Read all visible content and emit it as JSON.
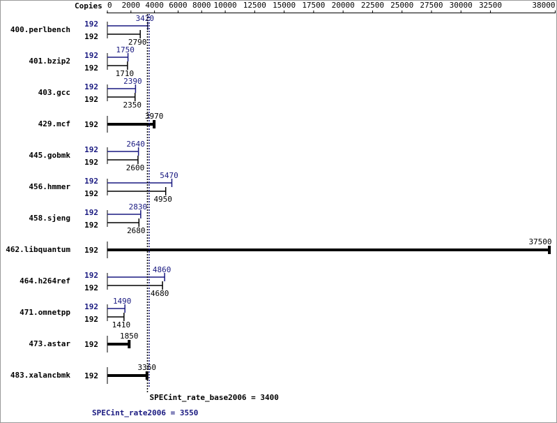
{
  "chart_data": {
    "type": "bar",
    "x_axis_title": "Copies",
    "categories": [
      "400.perlbench",
      "401.bzip2",
      "403.gcc",
      "429.mcf",
      "445.gobmk",
      "456.hmmer",
      "458.sjeng",
      "462.libquantum",
      "464.h264ref",
      "471.omnetpp",
      "473.astar",
      "483.xalancbmk"
    ],
    "series": [
      {
        "color": "#191980",
        "copies": [
          192,
          192,
          192,
          null,
          192,
          192,
          192,
          null,
          192,
          192,
          null,
          null
        ],
        "values": [
          3420,
          1750,
          2390,
          null,
          2640,
          5470,
          2830,
          null,
          4860,
          1490,
          null,
          null
        ]
      },
      {
        "color": "#000000",
        "copies": [
          192,
          192,
          192,
          192,
          192,
          192,
          192,
          192,
          192,
          192,
          192,
          192
        ],
        "values": [
          2790,
          1710,
          2350,
          3970,
          2600,
          4950,
          2680,
          37500,
          4680,
          1410,
          1850,
          3360
        ]
      }
    ],
    "xlim": [
      0,
      38000
    ],
    "xticks": [
      0,
      2000,
      4000,
      6000,
      8000,
      10000,
      12500,
      15000,
      17500,
      20000,
      22500,
      25000,
      27500,
      30000,
      32500,
      38000
    ],
    "reference_lines": [
      {
        "label": "SPECint_rate_base2006 = 3400",
        "value": 3400,
        "color": "#000000"
      },
      {
        "label": "SPECint_rate2006 = 3550",
        "value": 3550,
        "color": "#191980"
      }
    ]
  }
}
